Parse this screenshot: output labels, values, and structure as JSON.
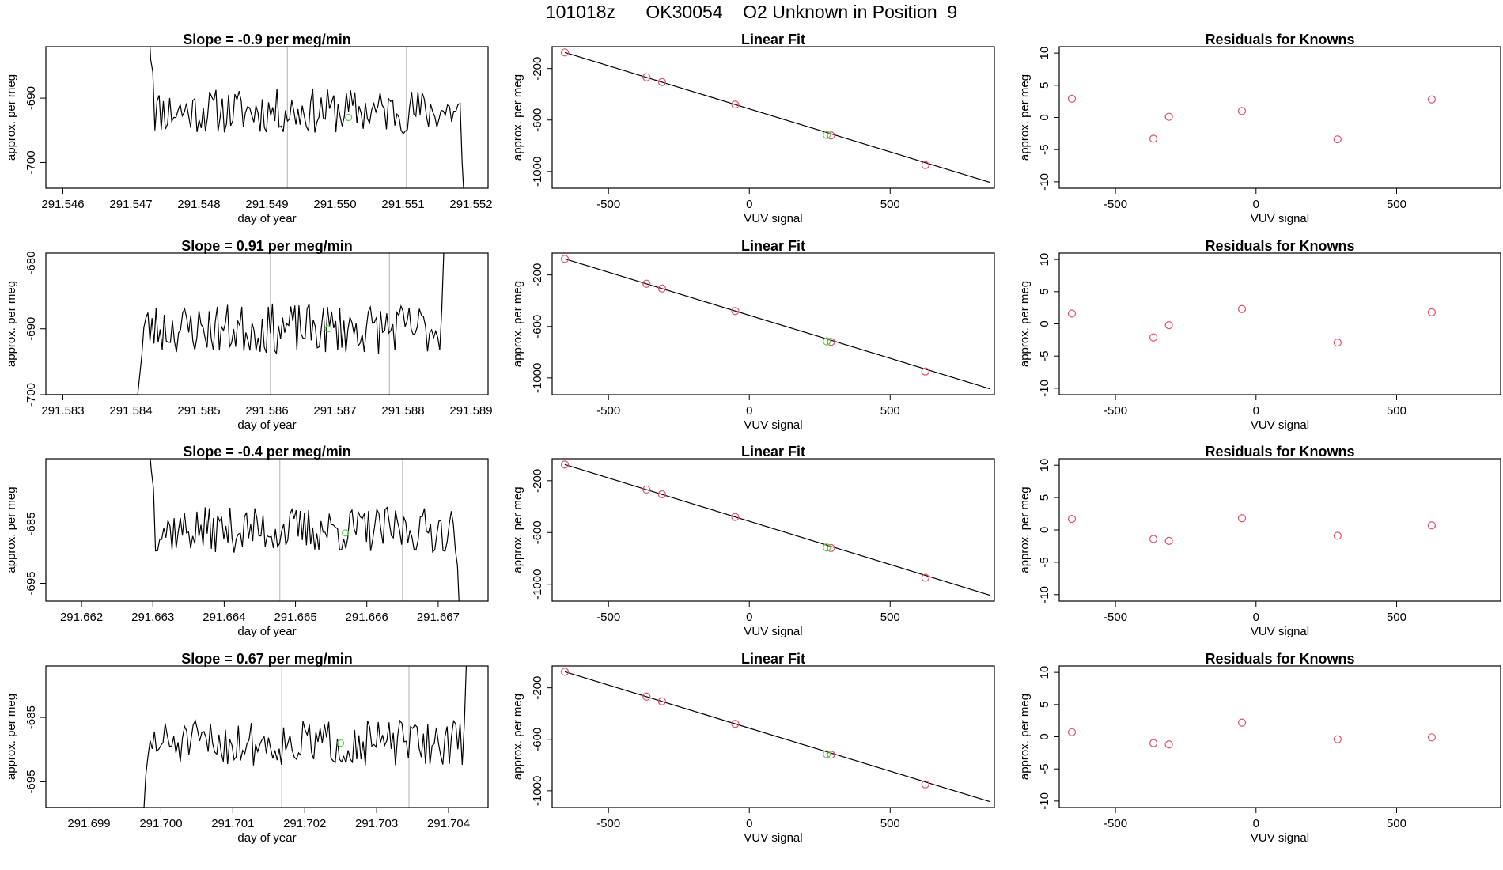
{
  "page": {
    "title": "101018z      OK30054    O2 Unknown in Position  9"
  },
  "colors": {
    "trace": "#000000",
    "fit_line": "#000000",
    "known_points": "#df536b",
    "unknown_points": "#61d04f",
    "marker_lines": "#bebebe",
    "frame": "#000000"
  },
  "chart_data": [
    {
      "type": "line",
      "row": 1,
      "title": "Slope =  -0.9  per meg/min",
      "xlabel": "day of year",
      "ylabel": "approx. per meg",
      "xlim": [
        291.54575,
        291.55225
      ],
      "ylim": [
        -704,
        -682
      ],
      "xticks": [
        "291.546",
        "291.547",
        "291.548",
        "291.549",
        "291.550",
        "291.551",
        "291.552"
      ],
      "yticks": [
        "-690",
        "-700"
      ],
      "markers": [
        291.5493,
        291.55105
      ],
      "trace": {
        "start": 291.54726,
        "end": 291.5519,
        "level": -692.0,
        "amp": 2.2,
        "seed": 11,
        "head": [
          -678,
          -684,
          -686
        ],
        "tail": [
          -700,
          -706
        ]
      },
      "unknown_point": {
        "x": 291.5502,
        "y": -693.0
      },
      "grid": false,
      "legend": "none"
    },
    {
      "type": "scatter",
      "row": 1,
      "title": "Linear Fit",
      "xlabel": "VUV signal",
      "ylabel": "approx. per meg",
      "xlim": [
        -700,
        870
      ],
      "ylim": [
        -1130,
        -30
      ],
      "xticks": [
        "-500",
        "0",
        "500"
      ],
      "yticks": [
        "-200",
        "-600",
        "-1000"
      ],
      "fit_line": {
        "x1": -655,
        "y1": -75,
        "x2": 855,
        "y2": -1085
      },
      "known_points": {
        "x": [
          -655,
          -365,
          -310,
          -50,
          290,
          625
        ],
        "y": [
          -75,
          -268,
          -305,
          -480,
          -720,
          -950
        ]
      },
      "unknown_points": {
        "x": [
          275
        ],
        "y": [
          -716
        ]
      },
      "grid": false,
      "legend": "none"
    },
    {
      "type": "scatter",
      "row": 1,
      "title": "Residuals for Knowns",
      "xlabel": "VUV signal",
      "ylabel": "approx. per meg",
      "xlim": [
        -700,
        870
      ],
      "ylim": [
        -11,
        11
      ],
      "xticks": [
        "-500",
        "0",
        "500"
      ],
      "yticks": [
        "10",
        "5",
        "0",
        "-5",
        "-10"
      ],
      "x": [
        -655,
        -365,
        -310,
        -50,
        290,
        625
      ],
      "y": [
        2.9,
        -3.3,
        0.1,
        1.0,
        -3.4,
        2.8
      ],
      "grid": false,
      "legend": "none"
    },
    {
      "type": "line",
      "row": 2,
      "title": "Slope =  0.91  per meg/min",
      "xlabel": "day of year",
      "ylabel": "approx. per meg",
      "xlim": [
        291.58275,
        291.58925
      ],
      "ylim": [
        -700,
        -678.5
      ],
      "xticks": [
        "291.583",
        "291.584",
        "291.585",
        "291.586",
        "291.587",
        "291.588",
        "291.589"
      ],
      "yticks": [
        "-680",
        "-690",
        "-700"
      ],
      "markers": [
        291.58605,
        291.5878
      ],
      "trace": {
        "start": 291.5841,
        "end": 291.5886,
        "level": -690.0,
        "amp": 2.4,
        "seed": 23,
        "head": [
          -700,
          -697,
          -694
        ],
        "tail": [
          -687,
          -678
        ]
      },
      "flat_start": {
        "from": 291.58275,
        "to": 291.5841,
        "value": -700
      },
      "unknown_point": {
        "x": 291.5869,
        "y": -690.0
      },
      "grid": false,
      "legend": "none"
    },
    {
      "type": "scatter",
      "row": 2,
      "title": "Linear Fit",
      "xlabel": "VUV signal",
      "ylabel": "approx. per meg",
      "xlim": [
        -700,
        870
      ],
      "ylim": [
        -1130,
        -30
      ],
      "xticks": [
        "-500",
        "0",
        "500"
      ],
      "yticks": [
        "-200",
        "-600",
        "-1000"
      ],
      "fit_line": {
        "x1": -655,
        "y1": -75,
        "x2": 855,
        "y2": -1085
      },
      "known_points": {
        "x": [
          -655,
          -365,
          -310,
          -50,
          290,
          625
        ],
        "y": [
          -75,
          -268,
          -305,
          -480,
          -720,
          -950
        ]
      },
      "unknown_points": {
        "x": [
          275
        ],
        "y": [
          -716
        ]
      },
      "grid": false,
      "legend": "none"
    },
    {
      "type": "scatter",
      "row": 2,
      "title": "Residuals for Knowns",
      "xlabel": "VUV signal",
      "ylabel": "approx. per meg",
      "xlim": [
        -700,
        870
      ],
      "ylim": [
        -11,
        11
      ],
      "xticks": [
        "-500",
        "0",
        "500"
      ],
      "yticks": [
        "10",
        "5",
        "0",
        "-5",
        "-10"
      ],
      "x": [
        -655,
        -365,
        -310,
        -50,
        290,
        625
      ],
      "y": [
        1.6,
        -2.1,
        -0.2,
        2.3,
        -2.9,
        1.8
      ],
      "grid": false,
      "legend": "none"
    },
    {
      "type": "line",
      "row": 3,
      "title": "Slope =  -0.4  per meg/min",
      "xlabel": "day of year",
      "ylabel": "approx. per meg",
      "xlim": [
        291.6615,
        291.6677
      ],
      "ylim": [
        -698,
        -674
      ],
      "xticks": [
        "291.662",
        "291.663",
        "291.664",
        "291.665",
        "291.666",
        "291.667"
      ],
      "yticks": [
        "-685",
        "-695"
      ],
      "markers": [
        291.66478,
        291.6665
      ],
      "trace": {
        "start": 291.66295,
        "end": 291.6673,
        "level": -686.0,
        "amp": 2.4,
        "seed": 37,
        "head": [
          -672,
          -676,
          -679
        ],
        "tail": [
          -692,
          -700
        ]
      },
      "unknown_point": {
        "x": 291.6657,
        "y": -686.5
      },
      "grid": false,
      "legend": "none"
    },
    {
      "type": "scatter",
      "row": 3,
      "title": "Linear Fit",
      "xlabel": "VUV signal",
      "ylabel": "approx. per meg",
      "xlim": [
        -700,
        870
      ],
      "ylim": [
        -1130,
        -30
      ],
      "xticks": [
        "-500",
        "0",
        "500"
      ],
      "yticks": [
        "-200",
        "-600",
        "-1000"
      ],
      "fit_line": {
        "x1": -655,
        "y1": -75,
        "x2": 855,
        "y2": -1085
      },
      "known_points": {
        "x": [
          -655,
          -365,
          -310,
          -50,
          290,
          625
        ],
        "y": [
          -75,
          -268,
          -305,
          -480,
          -720,
          -950
        ]
      },
      "unknown_points": {
        "x": [
          275
        ],
        "y": [
          -716
        ]
      },
      "grid": false,
      "legend": "none"
    },
    {
      "type": "scatter",
      "row": 3,
      "title": "Residuals for Knowns",
      "xlabel": "VUV signal",
      "ylabel": "approx. per meg",
      "xlim": [
        -700,
        870
      ],
      "ylim": [
        -11,
        11
      ],
      "xticks": [
        "-500",
        "0",
        "500"
      ],
      "yticks": [
        "10",
        "5",
        "0",
        "-5",
        "-10"
      ],
      "x": [
        -655,
        -365,
        -310,
        -50,
        290,
        625
      ],
      "y": [
        1.7,
        -1.4,
        -1.7,
        1.8,
        -0.9,
        0.7
      ],
      "grid": false,
      "legend": "none"
    },
    {
      "type": "line",
      "row": 4,
      "title": "Slope =  0.67  per meg/min",
      "xlabel": "day of year",
      "ylabel": "approx. per meg",
      "xlim": [
        291.6984,
        291.70455
      ],
      "ylim": [
        -699,
        -677
      ],
      "xticks": [
        "291.699",
        "291.700",
        "291.701",
        "291.702",
        "291.703",
        "291.704"
      ],
      "yticks": [
        "-685",
        "-695"
      ],
      "markers": [
        291.70168,
        291.70345
      ],
      "trace": {
        "start": 291.69976,
        "end": 291.70425,
        "level": -689.0,
        "amp": 2.2,
        "seed": 51,
        "head": [
          -700,
          -694,
          -691
        ],
        "tail": [
          -686,
          -676
        ]
      },
      "flat_start": {
        "from": 291.6984,
        "to": 291.69976,
        "value": -699
      },
      "unknown_point": {
        "x": 291.7025,
        "y": -689.0
      },
      "grid": false,
      "legend": "none"
    },
    {
      "type": "scatter",
      "row": 4,
      "title": "Linear Fit",
      "xlabel": "VUV signal",
      "ylabel": "approx. per meg",
      "xlim": [
        -700,
        870
      ],
      "ylim": [
        -1130,
        -30
      ],
      "xticks": [
        "-500",
        "0",
        "500"
      ],
      "yticks": [
        "-200",
        "-600",
        "-1000"
      ],
      "fit_line": {
        "x1": -655,
        "y1": -75,
        "x2": 855,
        "y2": -1085
      },
      "known_points": {
        "x": [
          -655,
          -365,
          -310,
          -50,
          290,
          625
        ],
        "y": [
          -75,
          -268,
          -305,
          -480,
          -720,
          -950
        ]
      },
      "unknown_points": {
        "x": [
          275
        ],
        "y": [
          -716
        ]
      },
      "grid": false,
      "legend": "none"
    },
    {
      "type": "scatter",
      "row": 4,
      "title": "Residuals for Knowns",
      "xlabel": "VUV signal",
      "ylabel": "approx. per meg",
      "xlim": [
        -700,
        870
      ],
      "ylim": [
        -11,
        11
      ],
      "xticks": [
        "-500",
        "0",
        "500"
      ],
      "yticks": [
        "10",
        "5",
        "0",
        "-5",
        "-10"
      ],
      "x": [
        -655,
        -365,
        -310,
        -50,
        290,
        625
      ],
      "y": [
        0.7,
        -1.0,
        -1.2,
        2.2,
        -0.4,
        -0.1
      ],
      "grid": false,
      "legend": "none"
    }
  ]
}
